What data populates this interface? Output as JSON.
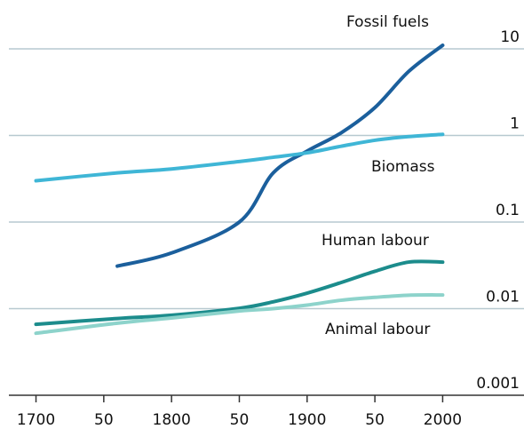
{
  "chart_data": {
    "type": "line",
    "x": [
      1700,
      1760,
      1800,
      1850,
      1875,
      1900,
      1925,
      1950,
      1975,
      2000
    ],
    "series": [
      {
        "name": "Fossil fuels",
        "color": "#1b5f9c",
        "values": [
          null,
          0.031,
          0.044,
          0.1,
          0.37,
          0.66,
          1.07,
          2.1,
          5.5,
          11
        ]
      },
      {
        "name": "Biomass",
        "color": "#3fb6d6",
        "values": [
          0.3,
          0.37,
          0.41,
          0.5,
          0.56,
          0.63,
          0.75,
          0.88,
          0.97,
          1.03
        ]
      },
      {
        "name": "Human labour",
        "color": "#1c8c8c",
        "values": [
          0.0066,
          0.0077,
          0.0084,
          0.0101,
          0.012,
          0.0151,
          0.02,
          0.027,
          0.0345,
          0.0345
        ]
      },
      {
        "name": "Animal labour",
        "color": "#8dd3cb",
        "values": [
          0.0052,
          0.0068,
          0.0078,
          0.0094,
          0.01,
          0.011,
          0.0125,
          0.0135,
          0.0143,
          0.0144
        ]
      }
    ],
    "xlim": [
      1680,
      2060
    ],
    "xticks": [
      1700,
      {
        "value": 1750,
        "label": "50"
      },
      1800,
      {
        "value": 1850,
        "label": "50"
      },
      1900,
      {
        "value": 1950,
        "label": "50"
      },
      2000
    ],
    "ylim": [
      0.001,
      30
    ],
    "log_y": true,
    "yticks": [
      0.001,
      0.01,
      0.1,
      1,
      10
    ],
    "grid": true
  }
}
